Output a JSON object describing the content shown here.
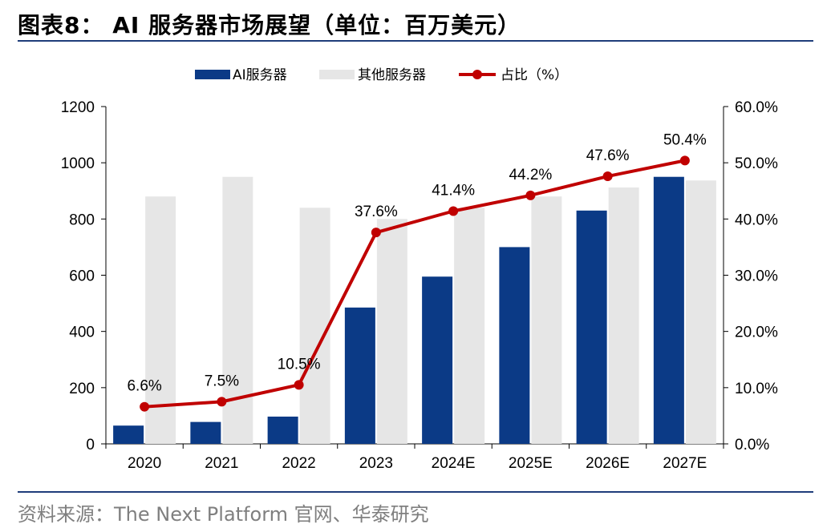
{
  "title": "图表8： AI 服务器市场展望（单位：百万美元）",
  "source": "资料来源：The Next Platform 官网、华泰研究",
  "colors": {
    "ai_server": "#0B3A86",
    "other_server": "#E6E6E6",
    "share_line": "#C00000",
    "rule": "#1F3D7A"
  },
  "chart_data": {
    "type": "bar",
    "categories": [
      "2020",
      "2021",
      "2022",
      "2023",
      "2024E",
      "2025E",
      "2026E",
      "2027E"
    ],
    "series": [
      {
        "name": "AI服务器",
        "kind": "bar",
        "axis": "left",
        "values": [
          65,
          78,
          97,
          485,
          595,
          700,
          830,
          950
        ]
      },
      {
        "name": "其他服务器",
        "kind": "bar",
        "axis": "left",
        "values": [
          880,
          950,
          840,
          800,
          840,
          880,
          912,
          937
        ]
      },
      {
        "name": "占比（%）",
        "kind": "line",
        "axis": "right",
        "values": [
          6.6,
          7.5,
          10.5,
          37.6,
          41.4,
          44.2,
          47.6,
          50.4
        ],
        "labels": [
          "6.6%",
          "7.5%",
          "10.5%",
          "37.6%",
          "41.4%",
          "44.2%",
          "47.6%",
          "50.4%"
        ]
      }
    ],
    "ylim": [
      0,
      1200
    ],
    "yticks": [
      "0",
      "200",
      "400",
      "600",
      "800",
      "1000",
      "1200"
    ],
    "y2lim": [
      0,
      60
    ],
    "y2ticks": [
      "0.0%",
      "10.0%",
      "20.0%",
      "30.0%",
      "40.0%",
      "50.0%",
      "60.0%"
    ],
    "legend": [
      "AI服务器",
      "其他服务器",
      "占比（%）"
    ],
    "legend_position": "top-center",
    "grid": false
  }
}
